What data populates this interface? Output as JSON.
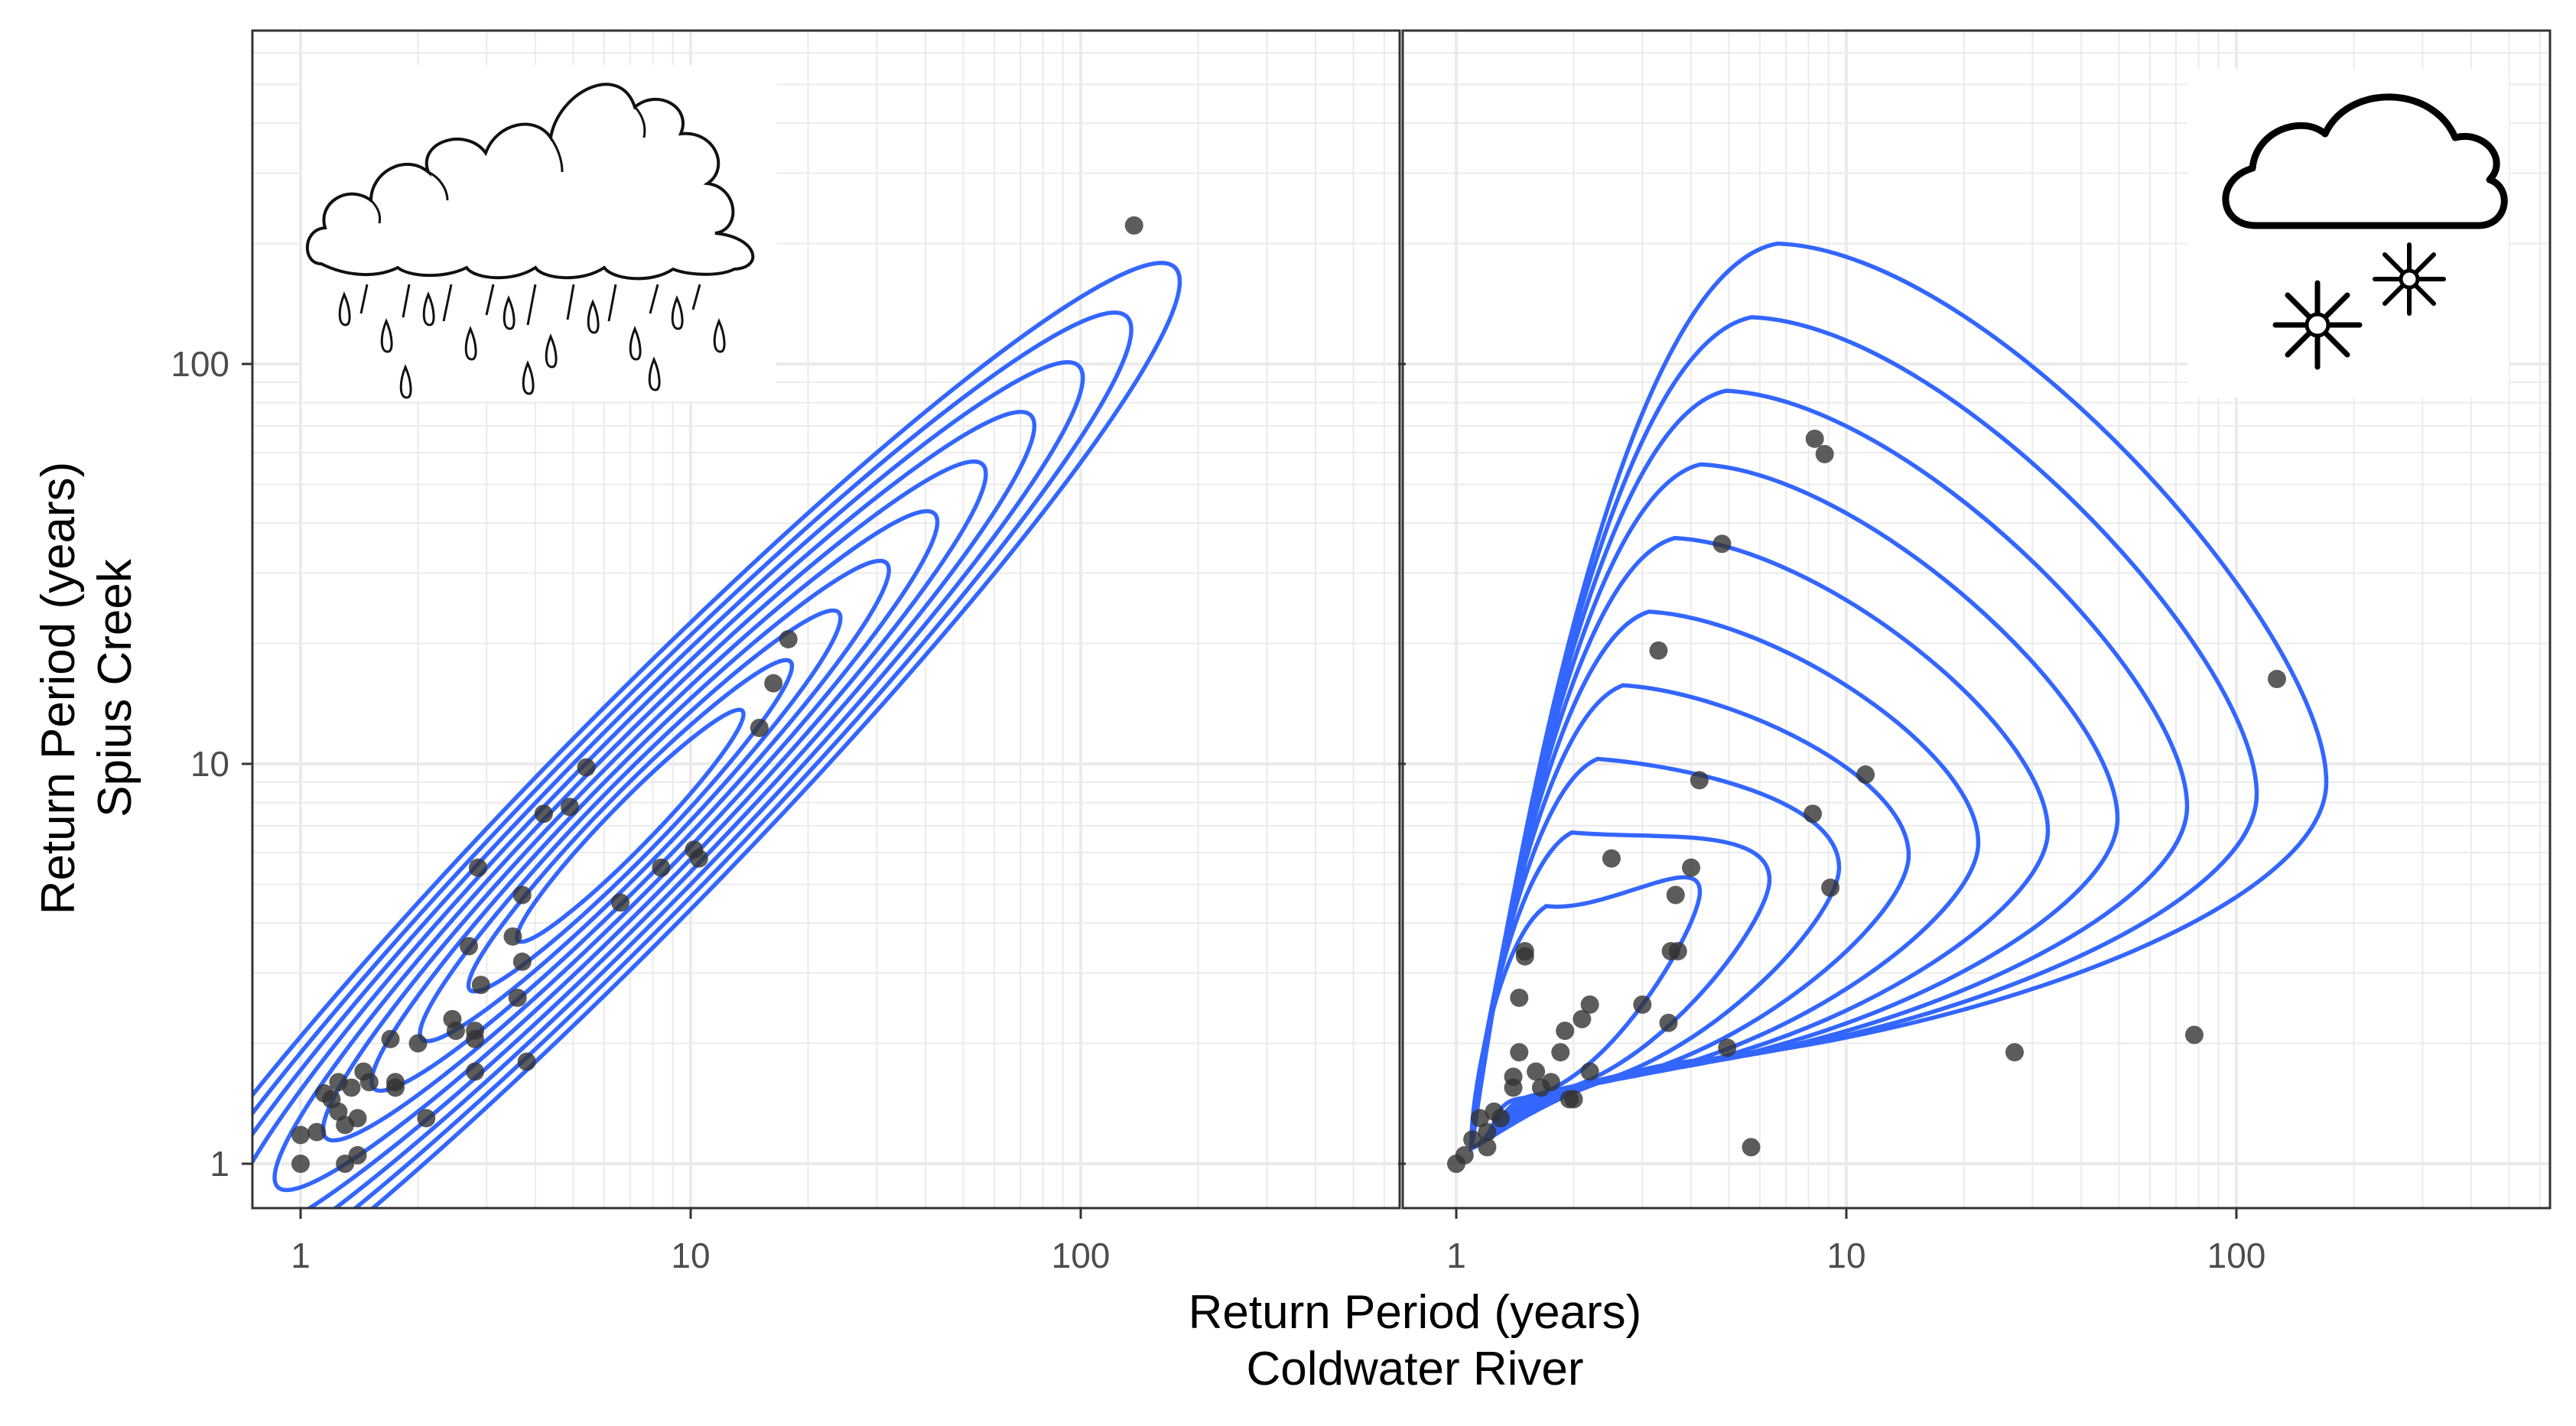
{
  "axes": {
    "x_label_line1": "Return Period (years)",
    "x_label_line2": "Coldwater River",
    "y_label_line1": "Return Period (years)",
    "y_label_line2": "Spius Creek",
    "x_ticks": [
      "1",
      "10",
      "100"
    ],
    "y_ticks": [
      "100",
      "10",
      "1"
    ]
  },
  "colors": {
    "contour": "#3366FF",
    "point": "#333333",
    "grid": "#EBEBEB",
    "panel_border": "#333333"
  },
  "icons": {
    "left_panel": "rain-cloud-icon",
    "right_panel": "snow-cloud-icon"
  },
  "chart_data": [
    {
      "type": "scatter",
      "panel": "rain",
      "x_scale": "log10",
      "y_scale": "log10",
      "xlim": [
        0.8,
        600
      ],
      "ylim": [
        0.75,
        900
      ],
      "grid": true,
      "contours": {
        "count": 10,
        "shape": "narrow elongated ellipse along diagonal",
        "color": "#3366FF"
      },
      "points": [
        [
          1.0,
          1.0
        ],
        [
          1.0,
          1.18
        ],
        [
          1.1,
          1.2
        ],
        [
          1.15,
          1.5
        ],
        [
          1.2,
          1.45
        ],
        [
          1.25,
          1.6
        ],
        [
          1.25,
          1.35
        ],
        [
          1.3,
          1.0
        ],
        [
          1.3,
          1.25
        ],
        [
          1.35,
          1.55
        ],
        [
          1.4,
          1.05
        ],
        [
          1.4,
          1.3
        ],
        [
          1.45,
          1.7
        ],
        [
          1.5,
          1.6
        ],
        [
          1.7,
          2.05
        ],
        [
          1.75,
          1.6
        ],
        [
          1.75,
          1.55
        ],
        [
          2.0,
          2.0
        ],
        [
          2.1,
          1.3
        ],
        [
          2.45,
          2.3
        ],
        [
          2.5,
          2.15
        ],
        [
          2.7,
          3.5
        ],
        [
          2.8,
          2.15
        ],
        [
          2.8,
          2.05
        ],
        [
          2.8,
          1.7
        ],
        [
          2.85,
          5.5
        ],
        [
          2.9,
          2.8
        ],
        [
          3.5,
          3.7
        ],
        [
          3.6,
          2.6
        ],
        [
          3.7,
          3.2
        ],
        [
          3.7,
          4.7
        ],
        [
          3.8,
          1.8
        ],
        [
          4.2,
          7.5
        ],
        [
          4.9,
          7.8
        ],
        [
          5.4,
          9.8
        ],
        [
          6.6,
          4.5
        ],
        [
          8.4,
          5.5
        ],
        [
          10.2,
          6.1
        ],
        [
          10.5,
          5.8
        ],
        [
          15.0,
          12.3
        ],
        [
          16.3,
          15.9
        ],
        [
          17.8,
          20.5
        ],
        [
          137.0,
          222.0
        ]
      ]
    },
    {
      "type": "scatter",
      "panel": "snow",
      "x_scale": "log10",
      "y_scale": "log10",
      "xlim": [
        0.8,
        600
      ],
      "ylim": [
        0.75,
        900
      ],
      "grid": true,
      "contours": {
        "count": 10,
        "shape": "teardrop fanning out from (1,1)",
        "color": "#3366FF"
      },
      "points": [
        [
          1.0,
          1.0
        ],
        [
          1.05,
          1.05
        ],
        [
          1.1,
          1.15
        ],
        [
          1.15,
          1.3
        ],
        [
          1.2,
          1.2
        ],
        [
          1.2,
          1.1
        ],
        [
          1.25,
          1.35
        ],
        [
          1.3,
          1.3
        ],
        [
          1.4,
          1.65
        ],
        [
          1.4,
          1.55
        ],
        [
          1.45,
          1.9
        ],
        [
          1.45,
          2.6
        ],
        [
          1.5,
          3.3
        ],
        [
          1.5,
          3.4
        ],
        [
          1.6,
          1.7
        ],
        [
          1.65,
          1.55
        ],
        [
          1.75,
          1.6
        ],
        [
          1.85,
          1.9
        ],
        [
          1.9,
          2.15
        ],
        [
          1.95,
          1.45
        ],
        [
          2.0,
          1.45
        ],
        [
          2.1,
          2.3
        ],
        [
          2.2,
          2.5
        ],
        [
          2.2,
          1.7
        ],
        [
          2.5,
          5.8
        ],
        [
          3.0,
          2.5
        ],
        [
          3.3,
          19.2
        ],
        [
          3.5,
          2.25
        ],
        [
          3.55,
          3.4
        ],
        [
          3.65,
          4.7
        ],
        [
          3.7,
          3.4
        ],
        [
          4.0,
          5.5
        ],
        [
          4.2,
          9.1
        ],
        [
          4.8,
          35.5
        ],
        [
          4.95,
          1.95
        ],
        [
          5.7,
          1.1
        ],
        [
          8.2,
          7.5
        ],
        [
          8.3,
          65.0
        ],
        [
          8.8,
          59.5
        ],
        [
          9.1,
          4.9
        ],
        [
          11.2,
          9.4
        ],
        [
          27.0,
          1.9
        ],
        [
          78.0,
          2.1
        ],
        [
          127.0,
          16.3
        ]
      ]
    }
  ]
}
